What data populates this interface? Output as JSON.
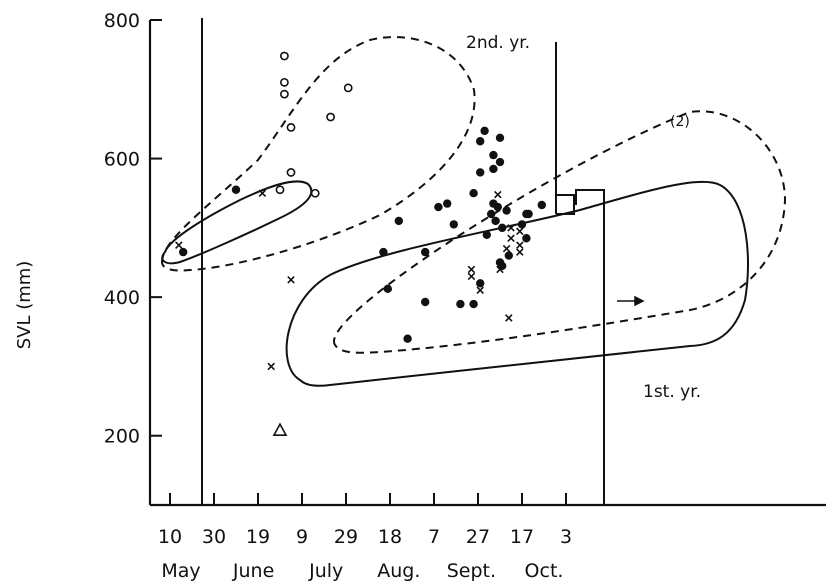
{
  "chart_data": {
    "type": "scatter",
    "title": "",
    "ylabel": "SVL (mm)",
    "xlabel": "",
    "ylim": [
      100,
      800
    ],
    "yticks": [
      200,
      400,
      600,
      800
    ],
    "x_tick_labels": [
      "10",
      "30",
      "19",
      "9",
      "29",
      "18",
      "7",
      "27",
      "17",
      "3"
    ],
    "month_labels": [
      "May",
      "June",
      "July",
      "Aug.",
      "Sept.",
      "Oct."
    ],
    "annotations": {
      "second_year": "2nd. yr.",
      "first_year": "1st. yr.",
      "count_label": "(2)"
    },
    "series": [
      {
        "marker": "filled-circle",
        "points": [
          {
            "x": 6,
            "y": 465
          },
          {
            "x": 30,
            "y": 555
          },
          {
            "x": 108,
            "y": 340
          },
          {
            "x": 97,
            "y": 465
          },
          {
            "x": 99,
            "y": 412
          },
          {
            "x": 104,
            "y": 510
          },
          {
            "x": 116,
            "y": 465
          },
          {
            "x": 116,
            "y": 393
          },
          {
            "x": 122,
            "y": 530
          },
          {
            "x": 126,
            "y": 535
          },
          {
            "x": 129,
            "y": 505
          },
          {
            "x": 132,
            "y": 390
          },
          {
            "x": 138,
            "y": 390
          },
          {
            "x": 138,
            "y": 550
          },
          {
            "x": 141,
            "y": 420
          },
          {
            "x": 141,
            "y": 580
          },
          {
            "x": 141,
            "y": 625
          },
          {
            "x": 143,
            "y": 640
          },
          {
            "x": 144,
            "y": 490
          },
          {
            "x": 146,
            "y": 520
          },
          {
            "x": 147,
            "y": 535
          },
          {
            "x": 147,
            "y": 585
          },
          {
            "x": 147,
            "y": 605
          },
          {
            "x": 148,
            "y": 510
          },
          {
            "x": 149,
            "y": 530
          },
          {
            "x": 150,
            "y": 450
          },
          {
            "x": 150,
            "y": 595
          },
          {
            "x": 150,
            "y": 630
          },
          {
            "x": 151,
            "y": 445
          },
          {
            "x": 151,
            "y": 500
          },
          {
            "x": 153,
            "y": 525
          },
          {
            "x": 154,
            "y": 460
          },
          {
            "x": 160,
            "y": 505
          },
          {
            "x": 162,
            "y": 520
          },
          {
            "x": 162,
            "y": 485
          },
          {
            "x": 163,
            "y": 520
          },
          {
            "x": 169,
            "y": 533
          }
        ]
      },
      {
        "marker": "open-circle",
        "points": [
          {
            "x": 50,
            "y": 555
          },
          {
            "x": 52,
            "y": 748
          },
          {
            "x": 52,
            "y": 710
          },
          {
            "x": 52,
            "y": 693
          },
          {
            "x": 55,
            "y": 645
          },
          {
            "x": 55,
            "y": 580
          },
          {
            "x": 66,
            "y": 550
          },
          {
            "x": 73,
            "y": 660
          },
          {
            "x": 81,
            "y": 702
          }
        ]
      },
      {
        "marker": "x",
        "points": [
          {
            "x": 4,
            "y": 475
          },
          {
            "x": 42,
            "y": 550
          },
          {
            "x": 46,
            "y": 300
          },
          {
            "x": 55,
            "y": 425
          },
          {
            "x": 137,
            "y": 440
          },
          {
            "x": 137,
            "y": 430
          },
          {
            "x": 141,
            "y": 410
          },
          {
            "x": 149,
            "y": 548
          },
          {
            "x": 150,
            "y": 440
          },
          {
            "x": 153,
            "y": 470
          },
          {
            "x": 154,
            "y": 370
          },
          {
            "x": 155,
            "y": 500
          },
          {
            "x": 155,
            "y": 485
          },
          {
            "x": 159,
            "y": 495
          },
          {
            "x": 159,
            "y": 475
          },
          {
            "x": 159,
            "y": 465
          }
        ]
      },
      {
        "marker": "triangle",
        "points": [
          {
            "x": 50,
            "y": 208
          }
        ]
      }
    ]
  }
}
